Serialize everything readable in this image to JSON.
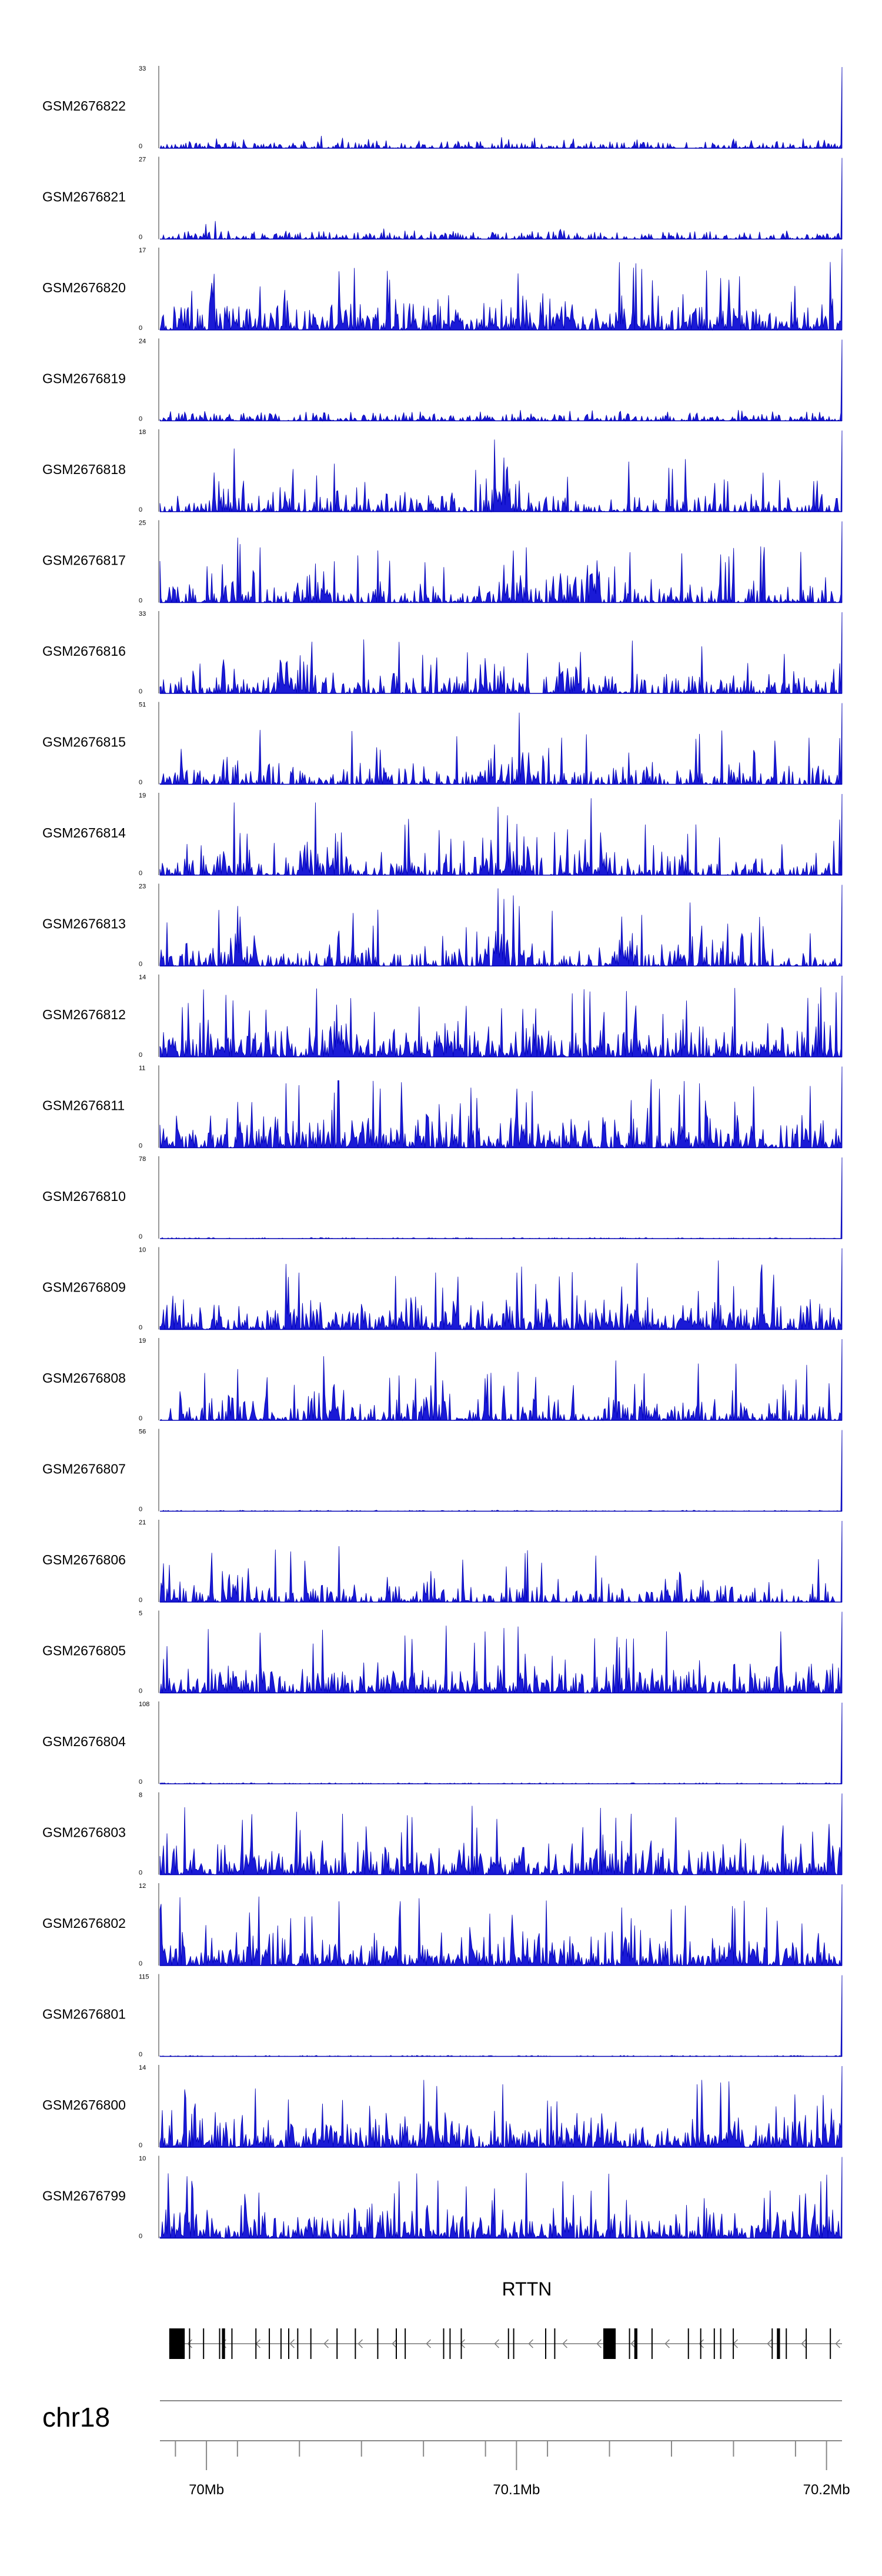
{
  "chart_data": {
    "type": "area",
    "chromosome": "chr18",
    "gene_name": "RTTN",
    "x_axis": {
      "range": [
        69.985,
        70.205
      ],
      "ticks_labeled": [
        {
          "value": 70.0,
          "label": "70Mb"
        },
        {
          "value": 70.1,
          "label": "70.1Mb"
        },
        {
          "value": 70.2,
          "label": "70.2Mb"
        }
      ],
      "minor_tick_step": 0.02
    },
    "series": [
      {
        "name": "GSM2676822",
        "ymax": 33,
        "style": "low",
        "peaks": [
          [
            70.037,
            5
          ]
        ]
      },
      {
        "name": "GSM2676821",
        "ymax": 27,
        "style": "low",
        "peaks": [
          [
            70.003,
            6
          ],
          [
            70.0,
            5
          ]
        ]
      },
      {
        "name": "GSM2676820",
        "ymax": 17,
        "style": "dense",
        "peaks": []
      },
      {
        "name": "GSM2676819",
        "ymax": 24,
        "style": "low",
        "peaks": []
      },
      {
        "name": "GSM2676818",
        "ymax": 18,
        "style": "sparse",
        "peaks": [
          [
            70.009,
            14
          ],
          [
            70.093,
            16
          ],
          [
            70.096,
            12
          ],
          [
            70.097,
            10
          ]
        ]
      },
      {
        "name": "GSM2676817",
        "ymax": 25,
        "style": "sparse",
        "peaks": [
          [
            70.01,
            20
          ],
          [
            70.011,
            18
          ],
          [
            70.035,
            12
          ],
          [
            70.099,
            16
          ],
          [
            70.103,
            17
          ],
          [
            70.114,
            9
          ],
          [
            70.126,
            13
          ]
        ]
      },
      {
        "name": "GSM2676816",
        "ymax": 33,
        "style": "sparse",
        "peaks": [
          [
            70.009,
            10
          ],
          [
            70.026,
            13
          ],
          [
            70.034,
            21
          ],
          [
            70.093,
            12
          ],
          [
            70.096,
            11
          ],
          [
            70.117,
            6
          ]
        ]
      },
      {
        "name": "GSM2676815",
        "ymax": 51,
        "style": "sparse",
        "peaks": [
          [
            70.01,
            15
          ],
          [
            70.093,
            25
          ],
          [
            70.101,
            45
          ],
          [
            70.104,
            20
          ],
          [
            70.062,
            10
          ]
        ]
      },
      {
        "name": "GSM2676814",
        "ymax": 19,
        "style": "sparse",
        "peaks": [
          [
            70.009,
            17
          ],
          [
            70.035,
            17
          ],
          [
            70.094,
            16
          ],
          [
            70.097,
            14
          ],
          [
            70.1,
            12
          ],
          [
            70.124,
            18
          ],
          [
            70.127,
            10
          ]
        ]
      },
      {
        "name": "GSM2676813",
        "ymax": 23,
        "style": "sparse",
        "peaks": [
          [
            70.01,
            17
          ],
          [
            70.011,
            14
          ],
          [
            70.094,
            22
          ],
          [
            70.096,
            19
          ],
          [
            70.099,
            20
          ],
          [
            70.101,
            17
          ],
          [
            70.134,
            14
          ],
          [
            70.156,
            18
          ],
          [
            70.168,
            12
          ]
        ]
      },
      {
        "name": "GSM2676812",
        "ymax": 14,
        "style": "dense",
        "peaks": [
          [
            70.014,
            8
          ],
          [
            70.042,
            9
          ],
          [
            70.198,
            12
          ]
        ]
      },
      {
        "name": "GSM2676811",
        "ymax": 11,
        "style": "dense",
        "peaks": [
          [
            70.1,
            8
          ],
          [
            70.146,
            8
          ]
        ]
      },
      {
        "name": "GSM2676810",
        "ymax": 78,
        "style": "flat",
        "peaks": []
      },
      {
        "name": "GSM2676809",
        "ymax": 10,
        "style": "dense",
        "peaks": [
          [
            70.03,
            7
          ],
          [
            70.1,
            7
          ],
          [
            70.179,
            8
          ]
        ]
      },
      {
        "name": "GSM2676808",
        "ymax": 19,
        "style": "sparse",
        "peaks": [
          [
            70.01,
            12
          ],
          [
            70.038,
            15
          ],
          [
            70.074,
            16
          ],
          [
            70.132,
            14
          ],
          [
            70.141,
            11
          ]
        ]
      },
      {
        "name": "GSM2676807",
        "ymax": 56,
        "style": "flat",
        "peaks": []
      },
      {
        "name": "GSM2676806",
        "ymax": 21,
        "style": "sparse",
        "peaks": [
          [
            69.986,
            10
          ],
          [
            70.01,
            7
          ],
          [
            70.07,
            5
          ],
          [
            70.148,
            6
          ],
          [
            70.153,
            7
          ]
        ]
      },
      {
        "name": "GSM2676805",
        "ymax": 5,
        "style": "dense",
        "peaks": [
          [
            70.096,
            4
          ]
        ]
      },
      {
        "name": "GSM2676804",
        "ymax": 108,
        "style": "flat",
        "peaks": []
      },
      {
        "name": "GSM2676803",
        "ymax": 8,
        "style": "dense",
        "peaks": [
          [
            70.044,
            6
          ],
          [
            70.137,
            6
          ],
          [
            70.201,
            5
          ]
        ]
      },
      {
        "name": "GSM2676802",
        "ymax": 12,
        "style": "dense",
        "peaks": [
          [
            70.027,
            7
          ],
          [
            70.062,
            7
          ],
          [
            70.137,
            7
          ]
        ]
      },
      {
        "name": "GSM2676801",
        "ymax": 115,
        "style": "flat",
        "peaks": []
      },
      {
        "name": "GSM2676800",
        "ymax": 14,
        "style": "dense",
        "peaks": [
          [
            70.077,
            6
          ],
          [
            70.199,
            9
          ]
        ]
      },
      {
        "name": "GSM2676799",
        "ymax": 10,
        "style": "dense",
        "peaks": [
          [
            70.062,
            7
          ],
          [
            70.115,
            7
          ],
          [
            70.198,
            7
          ]
        ]
      }
    ],
    "gene_model": {
      "label": "RTTN",
      "strand": "-",
      "start": 69.988,
      "end": 70.205,
      "thick_exons": [
        [
          69.988,
          69.993
        ],
        [
          70.005,
          70.006
        ],
        [
          70.128,
          70.132
        ],
        [
          70.138,
          70.139
        ],
        [
          70.184,
          70.185
        ]
      ]
    }
  }
}
